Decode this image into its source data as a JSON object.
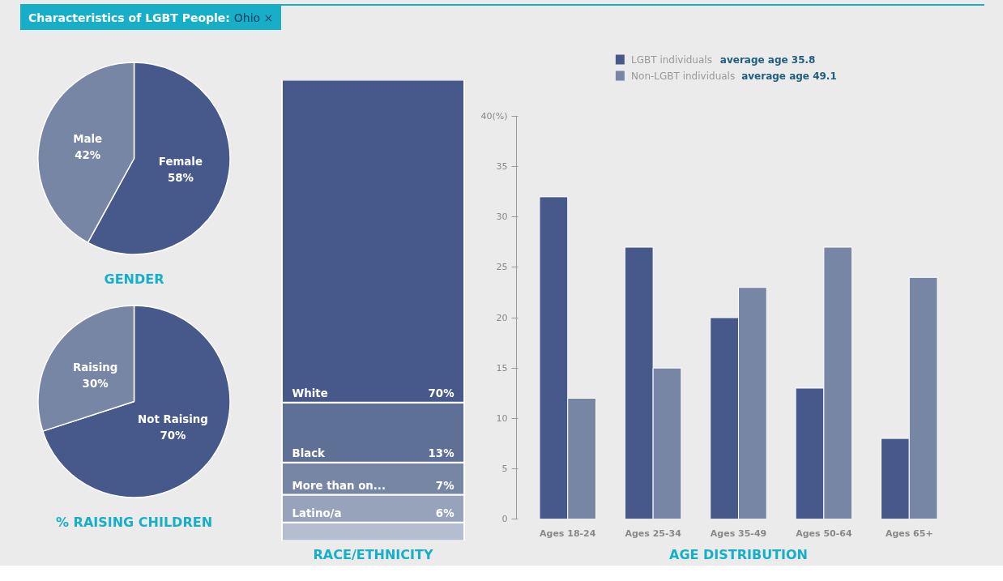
{
  "chart_data": [
    {
      "type": "other",
      "title": "Characteristics of LGBT People:",
      "subtitle": "Ohio ×"
    },
    {
      "type": "pie",
      "title": "GENDER",
      "categories": [
        "Female",
        "Male"
      ],
      "values": [
        58,
        42
      ],
      "value_labels": [
        "58%",
        "42%"
      ],
      "colors": [
        "#46598a",
        "#7886a5"
      ]
    },
    {
      "type": "pie",
      "title": "% RAISING CHILDREN",
      "categories": [
        "Not Raising",
        "Raising"
      ],
      "values": [
        70,
        30
      ],
      "value_labels": [
        "70%",
        "30%"
      ],
      "colors": [
        "#46598a",
        "#7886a5"
      ]
    },
    {
      "type": "bar",
      "title": "RACE/ETHNICITY",
      "stacked": true,
      "tick_labels": false,
      "categories": [
        null
      ],
      "series": [
        {
          "color": "#b5bdd0",
          "values": [
            4
          ],
          "value_labels": [
            null
          ]
        },
        {
          "name": "Latino/a",
          "color": "#97a3bb",
          "values": [
            6
          ],
          "value_labels": [
            "6%"
          ]
        },
        {
          "name": "More than on...",
          "color": "#7886a5",
          "values": [
            7
          ],
          "value_labels": [
            "7%"
          ]
        },
        {
          "name": "Black",
          "color": "#5f7096",
          "values": [
            13
          ],
          "value_labels": [
            "13%"
          ]
        },
        {
          "name": "White",
          "color": "#46598a",
          "values": [
            70
          ],
          "value_labels": [
            "70%"
          ]
        }
      ]
    },
    {
      "type": "bar",
      "title": "AGE DISTRIBUTION",
      "categories": [
        "Ages 18-24",
        "Ages 25-34",
        "Ages 35-49",
        "Ages 50-64",
        "Ages 65+"
      ],
      "ylim": [
        0,
        40
      ],
      "yticks": [
        0,
        5,
        10,
        15,
        20,
        25,
        30,
        35,
        {
          "value": 40,
          "label": "40(%)"
        }
      ],
      "grid": false,
      "legend": "top",
      "annotations": [
        "average age 35.8",
        "average age 49.1"
      ],
      "series": [
        {
          "name": "LGBT individuals",
          "color": "#46598a",
          "values": [
            32,
            27,
            20,
            13,
            8
          ]
        },
        {
          "name": "Non-LGBT individuals",
          "color": "#7886a5",
          "values": [
            12,
            15,
            23,
            27,
            24
          ]
        }
      ]
    }
  ]
}
